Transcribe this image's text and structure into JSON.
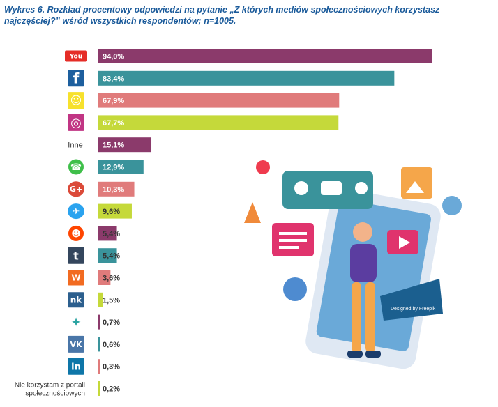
{
  "title": "Wykres 6. Rozkład procentowy odpowiedzi na pytanie „Z których mediów społecznościowych korzystasz najczęściej?” wśród wszystkich respondentów; n=1005.",
  "chart_data": {
    "type": "bar",
    "orientation": "horizontal",
    "categories": [
      "YouTube",
      "Facebook",
      "Snapchat",
      "Instagram",
      "Inne",
      "WhatsApp",
      "Google+",
      "Twitter",
      "Reddit",
      "Tumblr",
      "Wykop",
      "Nasza-Klasa",
      "Fotka",
      "VK",
      "LinkedIn",
      "Nie korzystam z portali społecznościowych"
    ],
    "values": [
      94.0,
      83.4,
      67.9,
      67.7,
      15.1,
      12.9,
      10.3,
      9.6,
      5.4,
      5.4,
      3.6,
      1.5,
      0.7,
      0.6,
      0.3,
      0.2
    ],
    "value_labels": [
      "94,0%",
      "83,4%",
      "67,9%",
      "67,7%",
      "15,1%",
      "12,9%",
      "10,3%",
      "9,6%",
      "5,4%",
      "5,4%",
      "3,6%",
      "1,5%",
      "0,7%",
      "0,6%",
      "0,3%",
      "0,2%"
    ],
    "row_labels": [
      "",
      "",
      "",
      "",
      "Inne",
      "",
      "",
      "",
      "",
      "",
      "",
      "",
      "",
      "",
      "",
      "Nie korzystam z portali społecznościowych"
    ],
    "icons": [
      "youtube-icon",
      "facebook-icon",
      "snapchat-icon",
      "instagram-icon",
      "",
      "whatsapp-icon",
      "google-plus-icon",
      "twitter-icon",
      "reddit-icon",
      "tumblr-icon",
      "wykop-icon",
      "nk-icon",
      "fotka-icon",
      "vk-icon",
      "linkedin-icon",
      ""
    ],
    "bar_colors": [
      "#8b3a6b",
      "#3a939b",
      "#e07b7b",
      "#c5d93a",
      "#8b3a6b",
      "#3a939b",
      "#e07b7b",
      "#c5d93a",
      "#8b3a6b",
      "#3a939b",
      "#e07b7b",
      "#c5d93a",
      "#8b3a6b",
      "#3a939b",
      "#e07b7b",
      "#c5d93a"
    ],
    "xlim": [
      0,
      100
    ],
    "grid": false,
    "legend": "none"
  },
  "illustration": {
    "icon": "social-media-person-illustration",
    "credit": "Designed by Freepik"
  }
}
